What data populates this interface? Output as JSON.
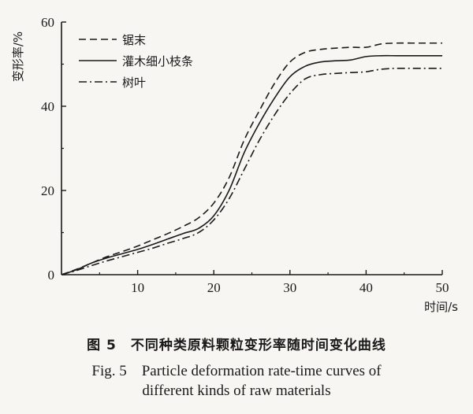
{
  "chart_data": {
    "type": "line",
    "xlabel": "时间/s",
    "ylabel": "变形率/%",
    "xlim": [
      0,
      50
    ],
    "ylim": [
      0,
      60
    ],
    "xticks": [
      10,
      20,
      30,
      40,
      50
    ],
    "yticks": [
      0,
      20,
      40,
      60
    ],
    "grid": false,
    "legend_position": "top-left",
    "series": [
      {
        "name": "锯末",
        "style": "dashed",
        "x": [
          0,
          2,
          4,
          6,
          8,
          10,
          12,
          14,
          16,
          18,
          20,
          22,
          24,
          26,
          28,
          30,
          32,
          34,
          36,
          38,
          40,
          42,
          44,
          46,
          48,
          50
        ],
        "y": [
          0,
          1.3,
          2.8,
          4.3,
          5.5,
          6.8,
          8.3,
          9.8,
          11.5,
          13.5,
          17,
          23,
          32,
          39,
          45.5,
          50.5,
          52.8,
          53.5,
          53.8,
          54,
          54,
          54.8,
          55,
          55,
          55,
          55
        ]
      },
      {
        "name": "灌木细小枝条",
        "style": "solid",
        "x": [
          0,
          2,
          4,
          6,
          8,
          10,
          12,
          14,
          16,
          18,
          20,
          22,
          24,
          26,
          28,
          30,
          32,
          34,
          36,
          38,
          40,
          42,
          44,
          46,
          48,
          50
        ],
        "y": [
          0,
          1.2,
          2.8,
          4,
          5,
          6,
          7.2,
          8.5,
          9.8,
          11,
          14,
          20,
          29,
          36,
          42,
          47,
          49.5,
          50.5,
          50.8,
          51,
          51.8,
          52,
          52,
          52,
          52,
          52
        ]
      },
      {
        "name": "树叶",
        "style": "dashdot",
        "x": [
          0,
          2,
          4,
          6,
          8,
          10,
          12,
          14,
          16,
          18,
          20,
          22,
          24,
          26,
          28,
          30,
          32,
          34,
          36,
          38,
          40,
          42,
          44,
          46,
          48,
          50
        ],
        "y": [
          0,
          1,
          2.2,
          3.3,
          4.3,
          5.3,
          6.3,
          7.5,
          8.6,
          10,
          13,
          18,
          25,
          32,
          38,
          43,
          46.5,
          47.5,
          47.8,
          48,
          48.2,
          48.8,
          49,
          49,
          49,
          49
        ]
      }
    ]
  },
  "caption": {
    "cn": "图 5　不同种类原料颗粒变形率随时间变化曲线",
    "en_line1": "Fig. 5　Particle deformation rate-time curves of",
    "en_line2": "different kinds of raw materials"
  }
}
